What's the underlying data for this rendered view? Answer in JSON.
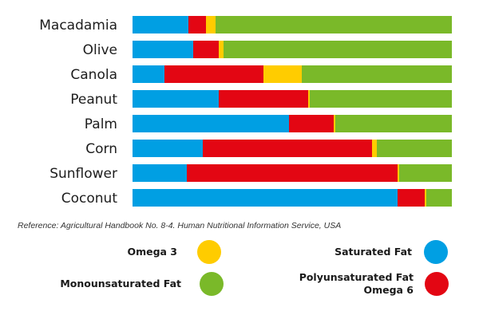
{
  "chart_data": {
    "type": "bar",
    "orientation": "horizontal",
    "stacked": true,
    "percent": true,
    "categories": [
      "Macadamia",
      "Olive",
      "Canola",
      "Peanut",
      "Palm",
      "Corn",
      "Sunflower",
      "Coconut"
    ],
    "series": [
      {
        "name": "Saturated Fat",
        "color": "#009fe3",
        "values": [
          17.5,
          19.0,
          10.0,
          27.0,
          49.0,
          22.0,
          17.0,
          83.0
        ]
      },
      {
        "name": "Polyunsaturated Fat Omega 6",
        "color": "#e30613",
        "values": [
          5.5,
          8.0,
          31.0,
          28.0,
          14.0,
          53.0,
          66.0,
          8.5
        ]
      },
      {
        "name": "Omega 3",
        "color": "#ffcc00",
        "values": [
          3.0,
          1.5,
          12.0,
          0.5,
          0.5,
          1.5,
          0.5,
          0.5
        ]
      },
      {
        "name": "Monounsaturated Fat",
        "color": "#7ab929",
        "values": [
          74.0,
          71.5,
          47.0,
          44.5,
          36.5,
          23.5,
          16.5,
          8.0
        ]
      }
    ],
    "xlim": [
      0,
      100
    ],
    "grid": false,
    "legend_position": "bottom"
  },
  "reference": "Reference: Agricultural Handbook No. 8-4. Human Nutritional Information Service, USA",
  "legend": [
    {
      "key": "omega3",
      "lines": [
        "Omega 3"
      ],
      "color": "#ffcc00"
    },
    {
      "key": "saturated",
      "lines": [
        "Saturated Fat"
      ],
      "color": "#009fe3"
    },
    {
      "key": "mono",
      "lines": [
        "Monounsaturated Fat"
      ],
      "color": "#7ab929"
    },
    {
      "key": "poly",
      "lines": [
        "Polyunsaturated Fat",
        "Omega 6"
      ],
      "color": "#e30613"
    }
  ]
}
